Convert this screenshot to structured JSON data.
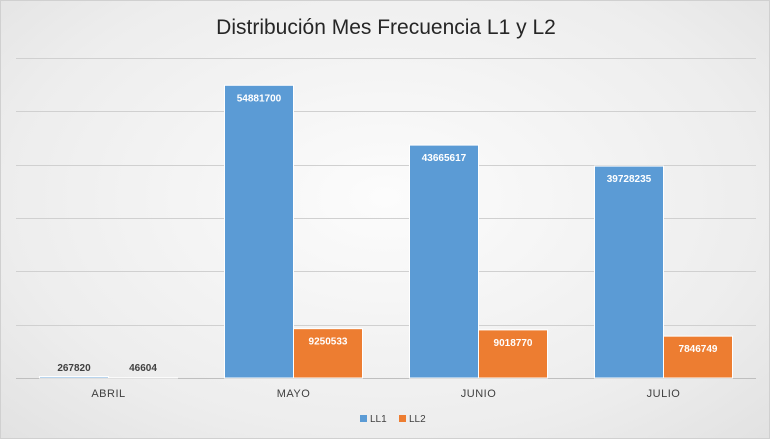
{
  "chart_data": {
    "type": "bar",
    "title": "Distribución Mes Frecuencia L1 y L2",
    "xlabel": "",
    "ylabel": "",
    "categories": [
      "ABRIL",
      "MAYO",
      "JUNIO",
      "JULIO"
    ],
    "series": [
      {
        "name": "LL1",
        "color": "#5b9bd5",
        "values": [
          267820,
          54881700,
          43665617,
          39728235
        ]
      },
      {
        "name": "LL2",
        "color": "#ed7d31",
        "values": [
          46604,
          9250533,
          9018770,
          7846749
        ]
      }
    ],
    "ylim": [
      0,
      60000000
    ],
    "y_gridline_step": 10000000,
    "y_tick_labels_visible": false,
    "grid": true,
    "legend": "bottom",
    "data_labels": true
  }
}
